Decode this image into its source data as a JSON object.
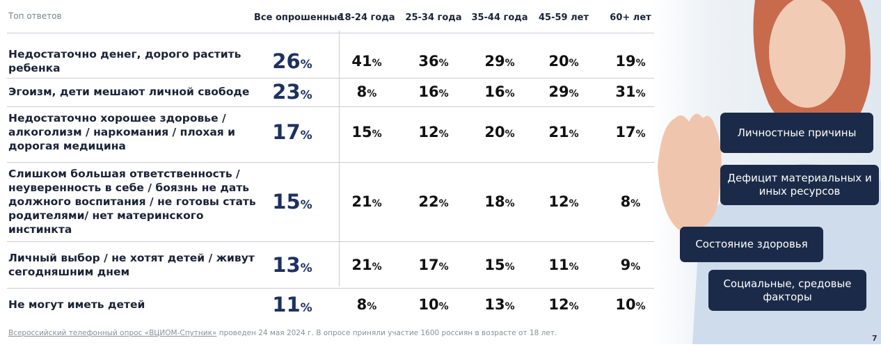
{
  "header": {
    "title": "Топ ответов",
    "columns": [
      "Все опрошенные",
      "18-24 года",
      "25-34 года",
      "35-44 года",
      "45-59 лет",
      "60+ лет"
    ]
  },
  "table": {
    "rows": [
      {
        "label": "Недостаточно денег, дорого растить ребенка",
        "cells": [
          {
            "number": 26,
            "unit": "%"
          },
          {
            "number": 41,
            "unit": "%"
          },
          {
            "number": 36,
            "unit": "%"
          },
          {
            "number": 29,
            "unit": "%"
          },
          {
            "number": 20,
            "unit": "%"
          },
          {
            "number": 19,
            "unit": "%"
          }
        ]
      },
      {
        "label": "Эгоизм, дети мешают личной свободе",
        "cells": [
          {
            "number": 23,
            "unit": "%"
          },
          {
            "number": 8,
            "unit": "%"
          },
          {
            "number": 16,
            "unit": "%"
          },
          {
            "number": 16,
            "unit": "%"
          },
          {
            "number": 29,
            "unit": "%"
          },
          {
            "number": 31,
            "unit": "%"
          }
        ]
      },
      {
        "label": "Недостаточно хорошее здоровье / алкоголизм / наркомания / плохая и дорогая медицина",
        "cells": [
          {
            "number": 17,
            "unit": "%"
          },
          {
            "number": 15,
            "unit": "%"
          },
          {
            "number": 12,
            "unit": "%"
          },
          {
            "number": 20,
            "unit": "%"
          },
          {
            "number": 21,
            "unit": "%"
          },
          {
            "number": 17,
            "unit": "%"
          }
        ]
      },
      {
        "label": "Слишком большая ответственность / неуверенность в себе / боязнь не дать должного воспитания / не готовы стать родителями/ нет материнского инстинкта",
        "cells": [
          {
            "number": 15,
            "unit": "%"
          },
          {
            "number": 21,
            "unit": "%"
          },
          {
            "number": 22,
            "unit": "%"
          },
          {
            "number": 18,
            "unit": "%"
          },
          {
            "number": 12,
            "unit": "%"
          },
          {
            "number": 8,
            "unit": "%"
          }
        ]
      },
      {
        "label": "Личный выбор / не хотят детей / живут сегодняшним днем",
        "cells": [
          {
            "number": 13,
            "unit": "%"
          },
          {
            "number": 21,
            "unit": "%"
          },
          {
            "number": 17,
            "unit": "%"
          },
          {
            "number": 15,
            "unit": "%"
          },
          {
            "number": 11,
            "unit": "%"
          },
          {
            "number": 9,
            "unit": "%"
          }
        ]
      },
      {
        "label": "Не могут иметь детей",
        "cells": [
          {
            "number": 11,
            "unit": "%"
          },
          {
            "number": 8,
            "unit": "%"
          },
          {
            "number": 10,
            "unit": "%"
          },
          {
            "number": 13,
            "unit": "%"
          },
          {
            "number": 12,
            "unit": "%"
          },
          {
            "number": 10,
            "unit": "%"
          }
        ]
      }
    ]
  },
  "tags": [
    "Личностные причины",
    "Дефицит материальных и иных ресурсов",
    "Состояние здоровья",
    "Социальные, средовые факторы"
  ],
  "footer": {
    "source_link": "Всероссийский телефонный опрос «ВЦИОМ-Спутник»",
    "text": "проведен 24 мая 2024 г. В опросе приняли участие 1600 россиян  в возрасте от 18 лет."
  },
  "page_number": "7"
}
